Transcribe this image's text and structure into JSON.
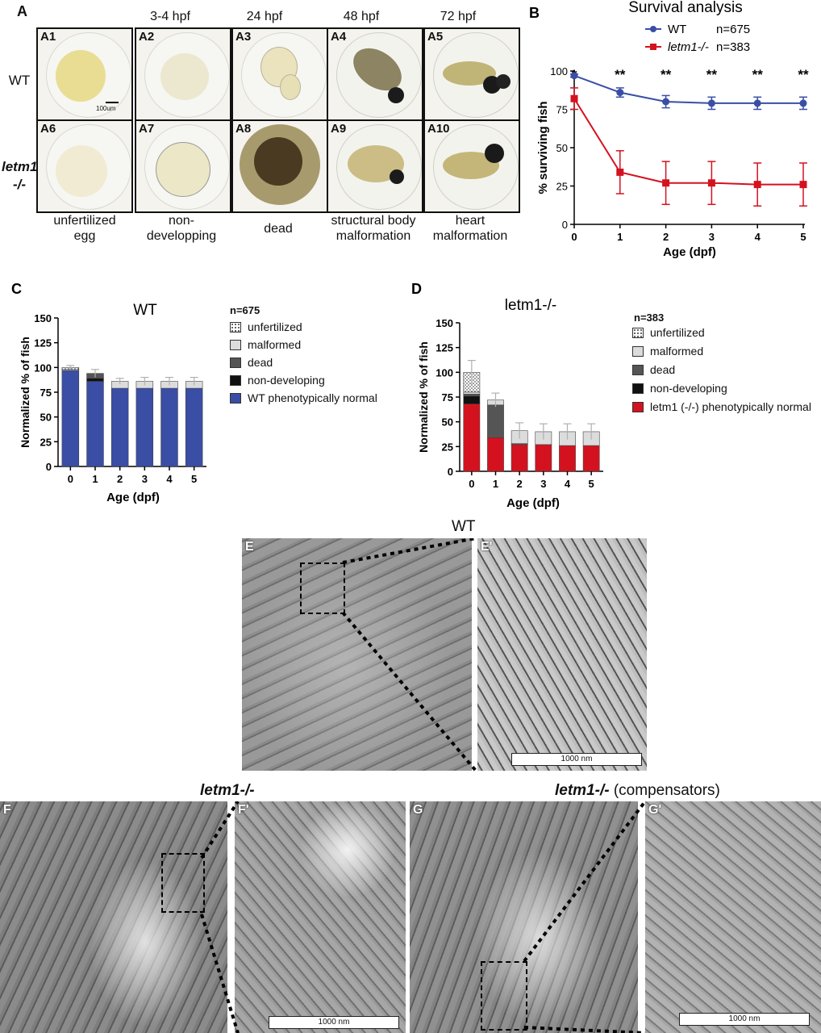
{
  "panel_a": {
    "label": "A",
    "stage_headers": [
      "3-4 hpf",
      "24 hpf",
      "48 hpf",
      "72 hpf"
    ],
    "row_labels": {
      "wt": "WT",
      "mut_line1": "letm1",
      "mut_line2": "-/-"
    },
    "tiles": [
      "A1",
      "A2",
      "A3",
      "A4",
      "A5",
      "A6",
      "A7",
      "A8",
      "A9",
      "A10"
    ],
    "scale": "100um",
    "captions": [
      [
        "unfertilized",
        "egg"
      ],
      [
        "non-",
        "developping"
      ],
      [
        "dead",
        ""
      ],
      [
        "structural body",
        "malformation"
      ],
      [
        "heart",
        "malformation"
      ]
    ]
  },
  "panel_e": {
    "title": "WT",
    "label": "E",
    "inset_label": "E'",
    "scale": "1000 nm"
  },
  "panel_f": {
    "title": "letm1-/-",
    "label": "F",
    "inset_label": "F'",
    "scale": "1000 nm"
  },
  "panel_g": {
    "title_italic": "letm1-/-",
    "title_rest": " (compensators)",
    "label": "G",
    "inset_label": "G'",
    "scale": "1000 nm"
  },
  "colors": {
    "wt": "#3a4ea6",
    "mut": "#d4121f",
    "dead": "#555555",
    "nondev": "#111111",
    "malformed": "#dcdcdc"
  },
  "chart_data": [
    {
      "id": "B",
      "label": "B",
      "type": "line",
      "title": "Survival analysis",
      "xlabel": "Age (dpf)",
      "ylabel": "% surviving fish",
      "x": [
        0,
        1,
        2,
        3,
        4,
        5
      ],
      "xlim": [
        0,
        5
      ],
      "ylim": [
        0,
        100
      ],
      "yticks": [
        0,
        25,
        50,
        75,
        100
      ],
      "significance": [
        "*",
        "**",
        "**",
        "**",
        "**",
        "**"
      ],
      "series": [
        {
          "name": "WT",
          "n": "n=675",
          "values": [
            97,
            86,
            80,
            79,
            79,
            79
          ],
          "err": [
            1,
            3,
            4,
            4,
            4,
            4
          ]
        },
        {
          "name": "letm1-/-",
          "n": "n=383",
          "values": [
            82,
            34,
            27,
            27,
            26,
            26
          ],
          "err": [
            7,
            14,
            14,
            14,
            14,
            14
          ]
        }
      ]
    },
    {
      "id": "C",
      "label": "C",
      "type": "bar",
      "title": "WT",
      "n": "n=675",
      "xlabel": "Age (dpf)",
      "ylabel": "Normalized % of fish",
      "categories": [
        "0",
        "1",
        "2",
        "3",
        "4",
        "5"
      ],
      "ylim": [
        0,
        150
      ],
      "yticks": [
        0,
        25,
        50,
        75,
        100,
        125,
        150
      ],
      "series": [
        {
          "name": "WT phenotypically normal",
          "values": [
            97,
            86,
            79,
            79,
            79,
            79
          ]
        },
        {
          "name": "non-developing",
          "values": [
            0,
            3,
            0,
            0,
            0,
            0
          ]
        },
        {
          "name": "dead",
          "values": [
            0,
            5,
            0,
            0,
            0,
            0
          ]
        },
        {
          "name": "malformed",
          "values": [
            1,
            0,
            7,
            7,
            7,
            7
          ]
        },
        {
          "name": "unfertilized",
          "values": [
            2,
            0,
            0,
            0,
            0,
            0
          ]
        }
      ],
      "err": [
        2,
        4,
        3,
        4,
        4,
        4
      ]
    },
    {
      "id": "D",
      "label": "D",
      "type": "bar",
      "title": "letm1-/-",
      "n": "n=383",
      "xlabel": "Age (dpf)",
      "ylabel": "Normalized % of fish",
      "categories": [
        "0",
        "1",
        "2",
        "3",
        "4",
        "5"
      ],
      "ylim": [
        0,
        150
      ],
      "yticks": [
        0,
        25,
        50,
        75,
        100,
        125,
        150
      ],
      "series": [
        {
          "name": "letm1 (-/-) phenotypically normal",
          "values": [
            68,
            34,
            27,
            27,
            26,
            26
          ]
        },
        {
          "name": "non-developing",
          "values": [
            8,
            0,
            0,
            0,
            0,
            0
          ]
        },
        {
          "name": "dead",
          "values": [
            2,
            33,
            1,
            0,
            0,
            0
          ]
        },
        {
          "name": "malformed",
          "values": [
            2,
            5,
            13,
            13,
            14,
            14
          ]
        },
        {
          "name": "unfertilized",
          "values": [
            20,
            0,
            0,
            0,
            0,
            0
          ]
        }
      ],
      "err": [
        12,
        7,
        8,
        8,
        8,
        8
      ]
    }
  ]
}
